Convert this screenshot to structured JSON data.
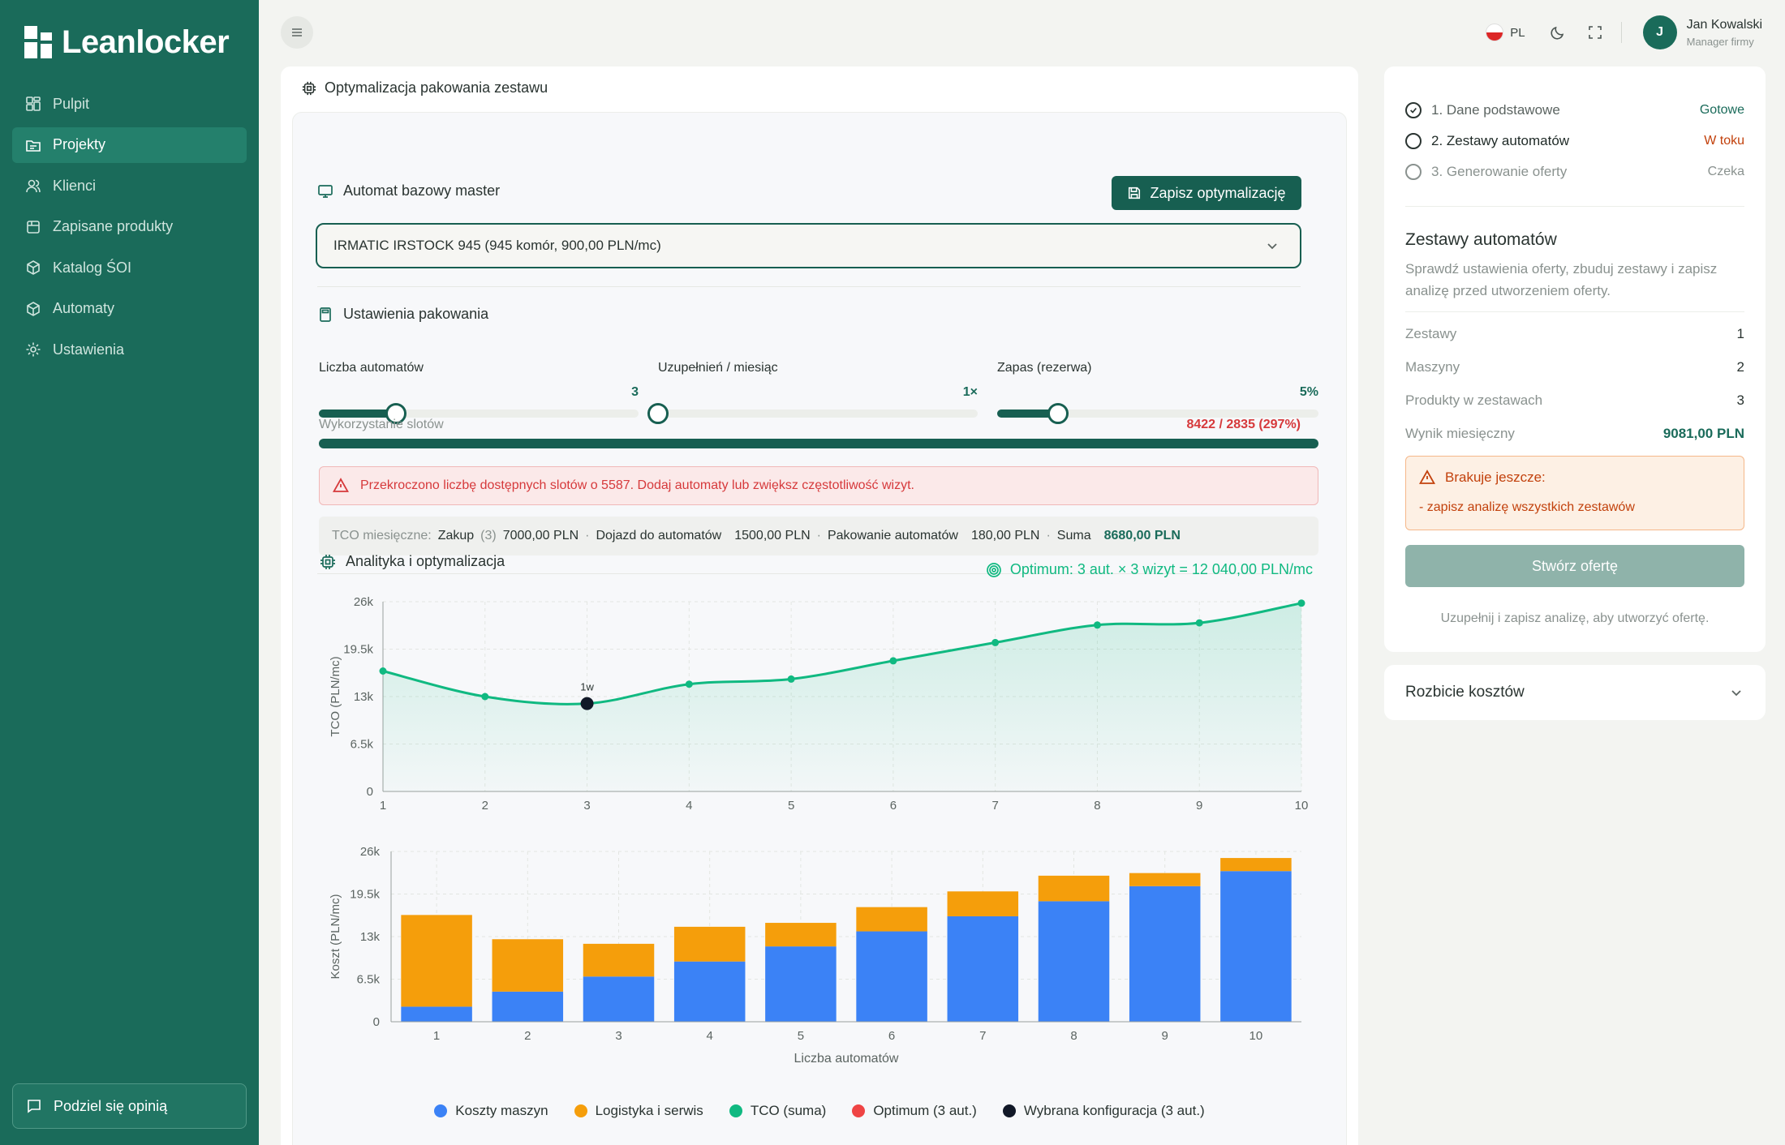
{
  "app": {
    "name": "Leanlocker"
  },
  "sidebar": {
    "items": [
      {
        "label": "Pulpit",
        "icon": "dashboard-icon",
        "active": false
      },
      {
        "label": "Projekty",
        "icon": "folder-icon",
        "active": true
      },
      {
        "label": "Klienci",
        "icon": "users-icon",
        "active": false
      },
      {
        "label": "Zapisane produkty",
        "icon": "package-icon",
        "active": false
      },
      {
        "label": "Katalog ŚOI",
        "icon": "box-icon",
        "active": false
      },
      {
        "label": "Automaty",
        "icon": "box-icon",
        "active": false
      },
      {
        "label": "Ustawienia",
        "icon": "gear-icon",
        "active": false
      }
    ],
    "feedback_label": "Podziel się opinią"
  },
  "topbar": {
    "language": "PL",
    "user_initial": "J",
    "user_name": "Jan Kowalski",
    "user_role": "Manager firmy"
  },
  "main": {
    "title": "Optymalizacja pakowania zestawu",
    "master_label": "Automat bazowy master",
    "save_label": "Zapisz optymalizację",
    "select_value": "IRMATIC IRSTOCK 945 (945 komór, 900,00 PLN/mc)",
    "packing_label": "Ustawienia pakowania",
    "sliders": [
      {
        "label": "Liczba automatów",
        "value": "3",
        "fraction": 0.24
      },
      {
        "label": "Uzupełnień / miesiąc",
        "value": "1×",
        "fraction": 0.0
      },
      {
        "label": "Zapas (rezerwa)",
        "value": "5%",
        "fraction": 0.19
      }
    ],
    "util_label": "Wykorzystanie slotów",
    "util_value": "8422 / 2835 (297%)",
    "alert": "Przekroczono liczbę dostępnych slotów o 5587. Dodaj automaty lub zwiększ częstotliwość wizyt.",
    "tco": {
      "label": "TCO miesięczne:",
      "zakup_label": "Zakup",
      "zakup_count": "(3)",
      "zakup_value": "7000,00 PLN",
      "dojazd_label": "Dojazd do automatów",
      "dojazd_value": "1500,00 PLN",
      "pakowanie_label": "Pakowanie automatów",
      "pakowanie_value": "180,00 PLN",
      "suma_label": "Suma",
      "suma_value": "8680,00 PLN"
    },
    "analytics_label": "Analityka i optymalizacja",
    "optimum_text": "Optimum: 3 aut. × 3 wizyt = 12 040,00 PLN/mc"
  },
  "chart_data": [
    {
      "type": "area",
      "ylabel": "TCO (PLN/mc)",
      "x": [
        1,
        2,
        3,
        4,
        5,
        6,
        7,
        8,
        9,
        10
      ],
      "y": [
        16500,
        13000,
        12040,
        14700,
        15400,
        17900,
        20400,
        22800,
        23100,
        25800
      ],
      "ylim": [
        0,
        26000
      ],
      "yticks": [
        "0",
        "6.5k",
        "13k",
        "19.5k",
        "26k"
      ],
      "highlight": {
        "x": 3,
        "label": "1w"
      }
    },
    {
      "type": "bar",
      "ylabel": "Koszt (PLN/mc)",
      "xlabel": "Liczba automatów",
      "categories": [
        "1",
        "2",
        "3",
        "4",
        "5",
        "6",
        "7",
        "8",
        "9",
        "10"
      ],
      "ylim": [
        0,
        26000
      ],
      "yticks": [
        "0",
        "6.5k",
        "13k",
        "19.5k",
        "26k"
      ],
      "series": [
        {
          "name": "Koszty maszyn",
          "color": "#3b82f6",
          "values": [
            2300,
            4600,
            6900,
            9200,
            11500,
            13800,
            16100,
            18400,
            20700,
            23000
          ]
        },
        {
          "name": "Logistyka i serwis",
          "color": "#f59e0b",
          "values": [
            14000,
            8000,
            5000,
            5300,
            3600,
            3700,
            3800,
            3900,
            2000,
            2000
          ]
        }
      ]
    }
  ],
  "legend": [
    {
      "label": "Koszty maszyn",
      "color": "#3b82f6"
    },
    {
      "label": "Logistyka i serwis",
      "color": "#f59e0b"
    },
    {
      "label": "TCO (suma)",
      "color": "#10b981"
    },
    {
      "label": "Optimum (3 aut.)",
      "color": "#ef4444"
    },
    {
      "label": "Wybrana konfiguracja (3 aut.)",
      "color": "#111827"
    }
  ],
  "right_panel": {
    "steps": [
      {
        "label": "1. Dane podstawowe",
        "status": "Gotowe",
        "status_color": "#1a6b5a",
        "done": true
      },
      {
        "label": "2. Zestawy automatów",
        "status": "W toku",
        "status_color": "#c2410c",
        "done": false
      },
      {
        "label": "3. Generowanie oferty",
        "status": "Czeka",
        "status_color": "#8a928f",
        "done": false
      }
    ],
    "title": "Zestawy automatów",
    "desc": "Sprawdź ustawienia oferty, zbuduj zestawy i zapisz analizę przed utworzeniem oferty.",
    "stats": [
      {
        "label": "Zestawy",
        "value": "1"
      },
      {
        "label": "Maszyny",
        "value": "2"
      },
      {
        "label": "Produkty w zestawach",
        "value": "3"
      },
      {
        "label": "Wynik miesięczny",
        "value": "9081,00 PLN"
      }
    ],
    "missing_title": "Brakuje jeszcze:",
    "missing_item": "- zapisz analizę wszystkich zestawów",
    "create_label": "Stwórz ofertę",
    "create_hint": "Uzupełnij i zapisz analizę, aby utworzyć ofertę.",
    "breakdown_label": "Rozbicie kosztów"
  }
}
